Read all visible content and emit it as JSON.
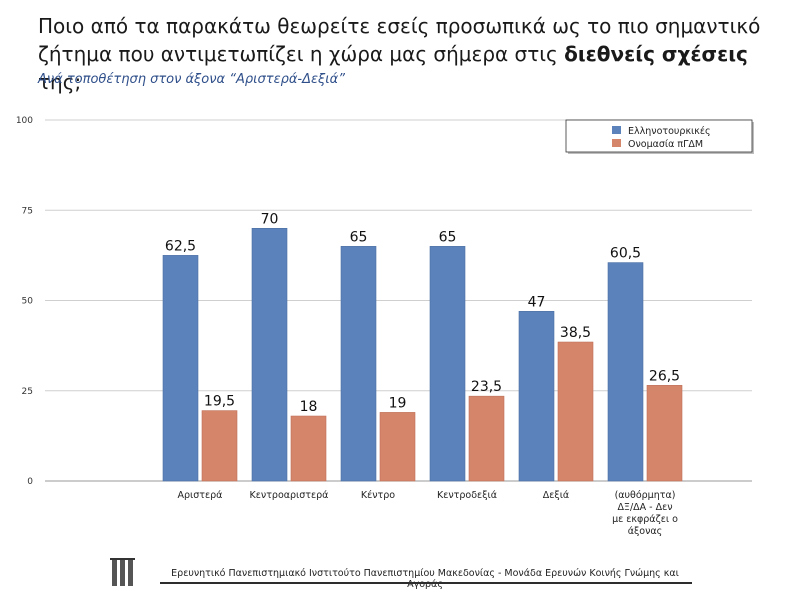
{
  "header": {
    "title_part1": "Ποιο από τα παρακάτω θεωρείτε εσείς προσωπικά ως το πιο σημαντικό ζήτημα που αντιμετωπίζει η χώρα μας σήμερα στις ",
    "title_bold": "διεθνείς σχέσεις",
    "title_part2": " της;",
    "subtitle": "Ανά τοποθέτηση στον άξονα “Αριστερά-Δεξιά”"
  },
  "chart_data": {
    "type": "bar",
    "title": "Ποιο από τα παρακάτω θεωρείτε εσείς προσωπικά ως το πιο σημαντικό ζήτημα που αντιμετωπίζει η χώρα μας σήμερα στις διεθνείς σχέσεις της;",
    "subtitle": "Ανά τοποθέτηση στον άξονα “Αριστερά-Δεξιά”",
    "categories": [
      "Αριστερά",
      "Κεντροαριστερά",
      "Κέντρο",
      "Κεντροδεξιά",
      "Δεξιά",
      "(αυθόρμητα) ΔΞ/ΔΑ - Δεν με εκφράζει ο άξονας"
    ],
    "series": [
      {
        "name": "Ελληνοτουρκικές",
        "color": "#5b82ba",
        "values": [
          62.5,
          70,
          65,
          65,
          47,
          60.5
        ],
        "labels": [
          "62,5",
          "70",
          "65",
          "65",
          "47",
          "60,5"
        ]
      },
      {
        "name": "Ονομασία πΓΔΜ",
        "color": "#d4856a",
        "values": [
          19.5,
          18,
          19,
          23.5,
          38.5,
          26.5
        ],
        "labels": [
          "19,5",
          "18",
          "19",
          "23,5",
          "38,5",
          "26,5"
        ]
      }
    ],
    "ylim": [
      0,
      100
    ],
    "yticks": [
      0,
      25,
      50,
      75,
      100
    ],
    "xlabel": "",
    "ylabel": "",
    "grid": true,
    "legend": "top-right"
  },
  "footer": {
    "text": "Ερευνητικό Πανεπιστημιακό Ινστιτούτο Πανεπιστημίου Μακεδονίας - Μονάδα Ερευνών Κοινής Γνώμης και Αγοράς"
  }
}
